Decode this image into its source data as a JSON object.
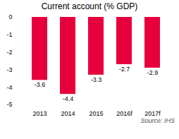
{
  "chart_data": {
    "type": "bar",
    "title": "Current account (% GDP)",
    "caption": "Source: IHS",
    "categories": [
      "2013",
      "2014",
      "2015",
      "2016f",
      "2017f"
    ],
    "values": [
      -3.6,
      -4.4,
      -3.3,
      -2.7,
      -2.9
    ],
    "color": "#e8003c",
    "ylim": [
      -5,
      0
    ],
    "yticks": [
      0,
      -1,
      -2,
      -3,
      -4,
      -5
    ],
    "grid": false,
    "data_labels": true
  }
}
